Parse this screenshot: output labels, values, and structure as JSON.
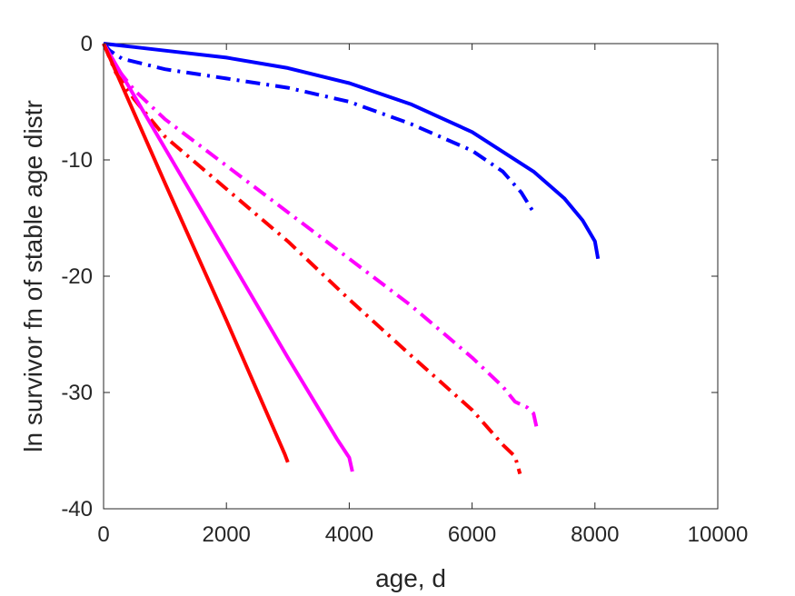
{
  "chart_data": {
    "type": "line",
    "title": "",
    "xlabel": "age, d",
    "ylabel": "ln survivor fn of stable age distr",
    "xlim": [
      0,
      10000
    ],
    "ylim": [
      -40,
      0
    ],
    "xticks": [
      0,
      2000,
      4000,
      6000,
      8000,
      10000
    ],
    "yticks": [
      0,
      -10,
      -20,
      -30,
      -40
    ],
    "xtick_labels": [
      "0",
      "2000",
      "4000",
      "6000",
      "8000",
      "10000"
    ],
    "ytick_labels": [
      "0",
      "-10",
      "-20",
      "-30",
      "-40"
    ],
    "grid": false,
    "legend": "none",
    "series": [
      {
        "color": "#0000ff",
        "style": "solid",
        "x": [
          0,
          500,
          1000,
          2000,
          3000,
          4000,
          5000,
          6000,
          7000,
          7500,
          7800,
          8000,
          8050
        ],
        "y": [
          0,
          -0.3,
          -0.6,
          -1.2,
          -2.1,
          -3.4,
          -5.2,
          -7.6,
          -11.0,
          -13.3,
          -15.2,
          -17.0,
          -18.5
        ]
      },
      {
        "color": "#0000ff",
        "style": "dashdot",
        "x": [
          0,
          100,
          300,
          1000,
          2000,
          3000,
          4000,
          5000,
          6000,
          6500,
          6800,
          7000
        ],
        "y": [
          0,
          -0.6,
          -1.3,
          -2.2,
          -3.0,
          -3.8,
          -5.0,
          -6.9,
          -9.2,
          -11.0,
          -12.8,
          -14.5
        ]
      },
      {
        "color": "#ff00ff",
        "style": "dashdot",
        "x": [
          0,
          200,
          500,
          1000,
          2000,
          3000,
          4000,
          5000,
          6000,
          6500,
          6700,
          6900,
          7000,
          7050
        ],
        "y": [
          0,
          -2.0,
          -4.0,
          -6.5,
          -10.5,
          -14.5,
          -18.5,
          -22.5,
          -27.0,
          -29.5,
          -30.8,
          -31.3,
          -31.8,
          -33.0
        ]
      },
      {
        "color": "#ff0000",
        "style": "dashdot",
        "x": [
          0,
          200,
          500,
          1000,
          2000,
          3000,
          4000,
          5000,
          6000,
          6500,
          6700,
          6780
        ],
        "y": [
          0,
          -2.5,
          -4.8,
          -8.0,
          -12.5,
          -17.0,
          -22.0,
          -26.8,
          -31.5,
          -34.5,
          -35.5,
          -37.0
        ]
      },
      {
        "color": "#ff00ff",
        "style": "solid",
        "x": [
          0,
          1000,
          2000,
          3000,
          3800,
          4000,
          4050
        ],
        "y": [
          0,
          -9.0,
          -18.0,
          -27.0,
          -34.0,
          -35.6,
          -36.8
        ]
      },
      {
        "color": "#ff0000",
        "style": "solid",
        "x": [
          0,
          1000,
          2000,
          2950,
          3000
        ],
        "y": [
          0,
          -12.0,
          -23.8,
          -35.3,
          -36.0
        ]
      }
    ]
  }
}
